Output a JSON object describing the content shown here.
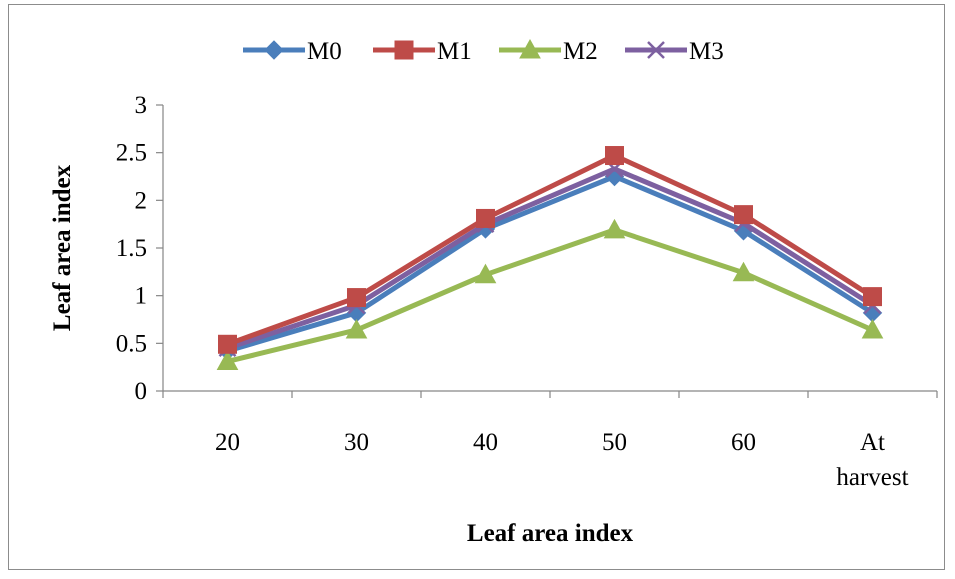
{
  "chart_data": {
    "type": "line",
    "title": "",
    "xlabel": "Leaf area index",
    "ylabel": "Leaf area index",
    "categories": [
      "20",
      "30",
      "40",
      "50",
      "60",
      "At harvest"
    ],
    "ylim": [
      0,
      3
    ],
    "yticks": [
      "0",
      "0.5",
      "1",
      "1.5",
      "2",
      "2.5",
      "3"
    ],
    "grid": false,
    "legend_position": "top",
    "series": [
      {
        "name": "M0",
        "color": "#4a7ebb",
        "marker": "diamond",
        "values": [
          0.42,
          0.82,
          1.7,
          2.25,
          1.68,
          0.82
        ]
      },
      {
        "name": "M1",
        "color": "#be4b48",
        "marker": "square",
        "values": [
          0.49,
          0.98,
          1.81,
          2.47,
          1.85,
          0.99
        ]
      },
      {
        "name": "M2",
        "color": "#98b954",
        "marker": "triangle",
        "values": [
          0.31,
          0.64,
          1.22,
          1.69,
          1.24,
          0.64
        ]
      },
      {
        "name": "M3",
        "color": "#7d60a0",
        "marker": "x",
        "values": [
          0.45,
          0.9,
          1.75,
          2.33,
          1.76,
          0.9
        ]
      }
    ]
  }
}
